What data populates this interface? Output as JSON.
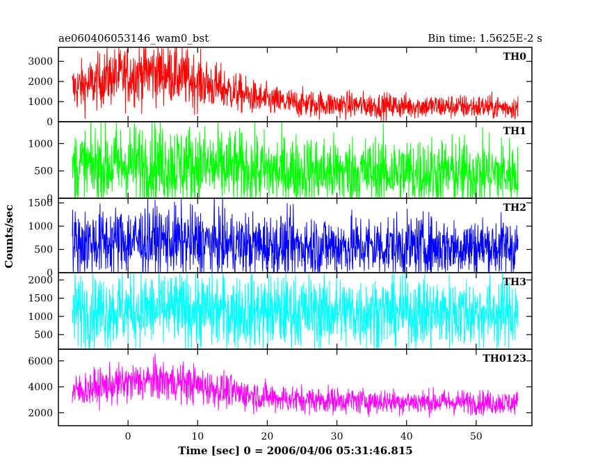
{
  "chart_data": {
    "type": "line",
    "title": "ae060406053146_wam0_bst",
    "subtitle": "Bin time: 1.5625E-2 s",
    "xlabel": "Time [sec] 0 = 2006/04/06 05:31:46.815",
    "ylabel": "Counts/sec",
    "xlim": [
      -10,
      58
    ],
    "x_range_data": [
      -8,
      56
    ],
    "x_ticks": [
      0,
      10,
      20,
      30,
      40,
      50
    ],
    "grid": false,
    "panels": [
      {
        "name": "TH0",
        "color": "#ff0000",
        "ylim": [
          0,
          3700
        ],
        "y_ticks": [
          0,
          1000,
          2000,
          3000
        ],
        "profile": [
          [
            -8,
            1650,
            600
          ],
          [
            -5,
            1900,
            650
          ],
          [
            -3,
            2200,
            700
          ],
          [
            0,
            2300,
            750
          ],
          [
            3,
            2500,
            800
          ],
          [
            6,
            2400,
            750
          ],
          [
            9,
            2100,
            700
          ],
          [
            12,
            1800,
            600
          ],
          [
            15,
            1500,
            500
          ],
          [
            18,
            1200,
            420
          ],
          [
            21,
            1000,
            380
          ],
          [
            25,
            900,
            350
          ],
          [
            30,
            850,
            330
          ],
          [
            35,
            800,
            320
          ],
          [
            40,
            780,
            310
          ],
          [
            45,
            760,
            300
          ],
          [
            50,
            740,
            300
          ],
          [
            56,
            700,
            290
          ]
        ]
      },
      {
        "name": "TH1",
        "color": "#00ff00",
        "ylim": [
          0,
          1400
        ],
        "y_ticks": [
          0,
          500,
          1000
        ],
        "profile": [
          [
            -8,
            560,
            360
          ],
          [
            0,
            620,
            380
          ],
          [
            5,
            630,
            380
          ],
          [
            10,
            590,
            370
          ],
          [
            15,
            540,
            350
          ],
          [
            20,
            500,
            340
          ],
          [
            30,
            480,
            330
          ],
          [
            40,
            470,
            330
          ],
          [
            50,
            460,
            320
          ],
          [
            56,
            450,
            320
          ]
        ]
      },
      {
        "name": "TH2",
        "color": "#0000ff",
        "ylim": [
          0,
          1600
        ],
        "y_ticks": [
          0,
          500,
          1000,
          1500
        ],
        "profile": [
          [
            -8,
            640,
            360
          ],
          [
            0,
            680,
            380
          ],
          [
            5,
            690,
            380
          ],
          [
            10,
            650,
            370
          ],
          [
            15,
            600,
            350
          ],
          [
            20,
            580,
            340
          ],
          [
            30,
            570,
            340
          ],
          [
            40,
            560,
            330
          ],
          [
            50,
            560,
            330
          ],
          [
            56,
            550,
            330
          ]
        ]
      },
      {
        "name": "TH3",
        "color": "#00ffff",
        "ylim": [
          100,
          2200
        ],
        "y_ticks": [
          500,
          1000,
          1500,
          2000
        ],
        "profile": [
          [
            -8,
            1150,
            520
          ],
          [
            0,
            1180,
            530
          ],
          [
            5,
            1180,
            530
          ],
          [
            10,
            1160,
            520
          ],
          [
            20,
            1130,
            510
          ],
          [
            30,
            1120,
            510
          ],
          [
            40,
            1110,
            500
          ],
          [
            50,
            1100,
            500
          ],
          [
            56,
            1100,
            500
          ]
        ]
      },
      {
        "name": "TH0123",
        "color": "#ff00ff",
        "ylim": [
          1000,
          6900
        ],
        "y_ticks": [
          2000,
          4000,
          6000
        ],
        "profile": [
          [
            -8,
            3600,
            650
          ],
          [
            -4,
            4000,
            700
          ],
          [
            0,
            4300,
            750
          ],
          [
            4,
            4500,
            780
          ],
          [
            8,
            4300,
            750
          ],
          [
            12,
            3900,
            700
          ],
          [
            16,
            3500,
            620
          ],
          [
            20,
            3200,
            560
          ],
          [
            25,
            3000,
            520
          ],
          [
            30,
            2950,
            500
          ],
          [
            40,
            2850,
            480
          ],
          [
            50,
            2800,
            470
          ],
          [
            56,
            2750,
            460
          ]
        ]
      }
    ]
  }
}
